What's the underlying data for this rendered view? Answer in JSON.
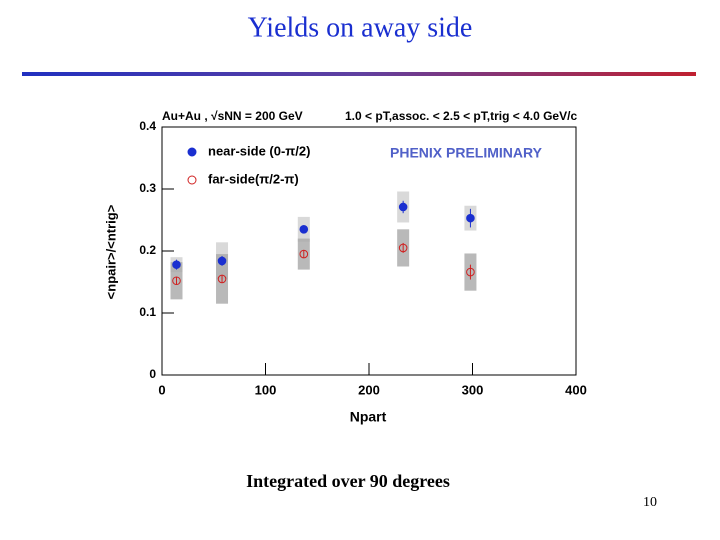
{
  "chart_data": {
    "type": "scatter",
    "title": "Yields on away side",
    "annotations": [
      "Au+Au , √sNN = 200 GeV",
      "1.0 < pT,assoc. < 2.5 < pT,trig < 4.0 GeV/c",
      "PHENIX PRELIMINARY"
    ],
    "xlabel": "Npart",
    "ylabel": "<npair>/<ntrig>",
    "caption": "Integrated over 90 degrees",
    "page_number": "10",
    "xlim": [
      0,
      400
    ],
    "ylim": [
      0,
      0.4
    ],
    "xticks": [
      0,
      100,
      200,
      300,
      400
    ],
    "yticks": [
      0,
      0.1,
      0.2,
      0.3,
      0.4
    ],
    "series": [
      {
        "name": "near-side (0-π/2)",
        "color": "#1a2fd0",
        "marker": "filled",
        "x": [
          14,
          58,
          137,
          233,
          298
        ],
        "values": [
          0.178,
          0.184,
          0.235,
          0.271,
          0.253
        ],
        "errors": [
          0.008,
          0.008,
          0.006,
          0.01,
          0.015
        ],
        "sys": [
          0.012,
          0.03,
          0.02,
          0.025,
          0.02
        ]
      },
      {
        "name": "far-side(π/2-π)",
        "color": "#d02020",
        "marker": "open",
        "x": [
          14,
          58,
          137,
          233,
          298
        ],
        "values": [
          0.152,
          0.155,
          0.195,
          0.205,
          0.166
        ],
        "errors": [
          0.006,
          0.006,
          0.006,
          0.008,
          0.012
        ],
        "sys": [
          0.03,
          0.04,
          0.025,
          0.03,
          0.03
        ]
      }
    ]
  }
}
